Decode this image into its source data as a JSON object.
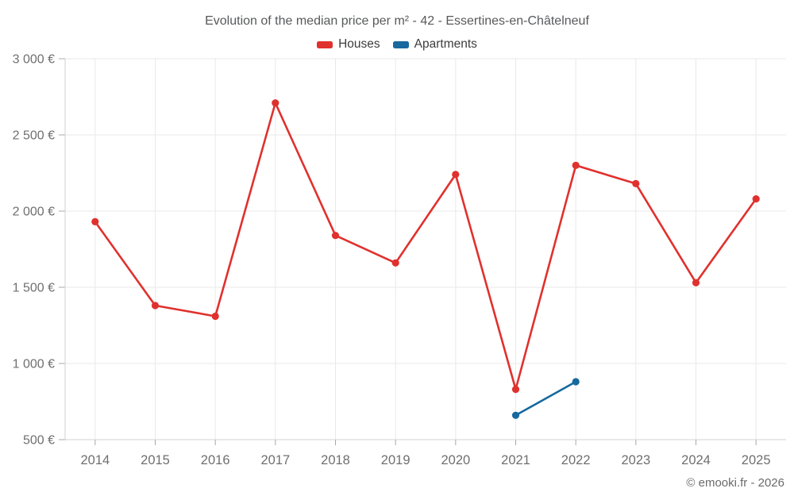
{
  "title": "Evolution of the median price per m² - 42 - Essertines-en-Châtelneuf",
  "footer": "© emooki.fr - 2026",
  "legend": {
    "items": [
      {
        "label": "Houses",
        "color": "#e0312e"
      },
      {
        "label": "Apartments",
        "color": "#17699e"
      }
    ]
  },
  "colors": {
    "houses": "#e0312e",
    "apartments": "#17699e",
    "gridline": "#e9e9e9",
    "axis_line": "#d2d2d2",
    "tick_mark": "#a8a8a8",
    "tick_label": "#6f6f71",
    "title_text": "#58595b",
    "legend_text": "#3d3d3f",
    "background": "#ffffff"
  },
  "chart_data": {
    "type": "line",
    "title": "Evolution of the median price per m² - 42 - Essertines-en-Châtelneuf",
    "categories": [
      "2014",
      "2015",
      "2016",
      "2017",
      "2018",
      "2019",
      "2020",
      "2021",
      "2022",
      "2023",
      "2024",
      "2025"
    ],
    "series": [
      {
        "name": "Houses",
        "color": "#e0312e",
        "values": [
          1930,
          1380,
          1310,
          2710,
          1840,
          1660,
          2240,
          830,
          2300,
          2180,
          1530,
          2080
        ]
      },
      {
        "name": "Apartments",
        "color": "#17699e",
        "values": [
          null,
          null,
          null,
          null,
          null,
          null,
          null,
          660,
          880,
          null,
          null,
          null
        ]
      }
    ],
    "xlabel": "",
    "ylabel": "",
    "ylim": [
      500,
      3000
    ],
    "y_ticks": [
      500,
      1000,
      1500,
      2000,
      2500,
      3000
    ],
    "y_tick_suffix": " €",
    "grid": true,
    "legend_position": "top"
  }
}
